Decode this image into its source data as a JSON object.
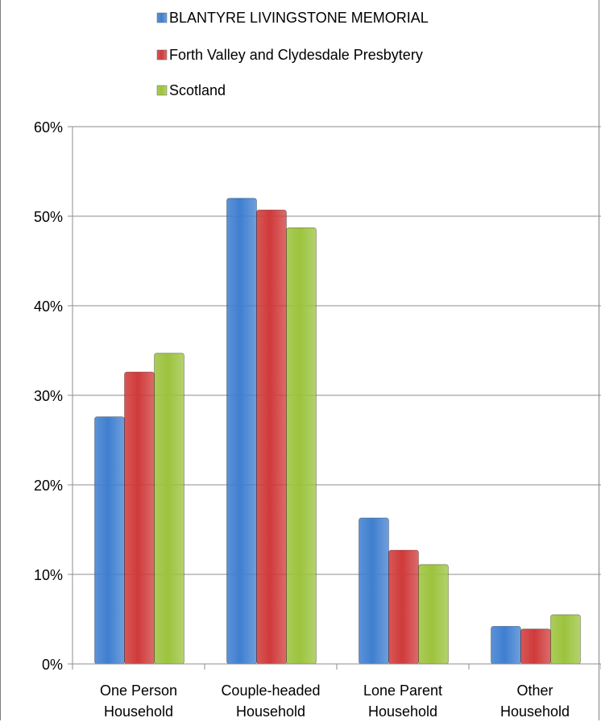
{
  "chart_data": {
    "type": "bar",
    "categories": [
      [
        "One Person",
        "Household"
      ],
      [
        "Couple-headed",
        "Household"
      ],
      [
        "Lone Parent",
        "Household"
      ],
      [
        "Other",
        "Household"
      ]
    ],
    "series": [
      {
        "name": "BLANTYRE LIVINGSTONE MEMORIAL",
        "color": "#3f7fd0",
        "values": [
          27.6,
          52.0,
          16.3,
          4.2
        ]
      },
      {
        "name": "Forth Valley and Clydesdale Presbytery",
        "color": "#d03a3a",
        "values": [
          32.6,
          50.7,
          12.7,
          3.9
        ]
      },
      {
        "name": "Scotland",
        "color": "#9cc33d",
        "values": [
          34.7,
          48.7,
          11.1,
          5.5
        ]
      }
    ],
    "ylim": [
      0,
      60
    ],
    "yticks": [
      "0%",
      "10%",
      "20%",
      "30%",
      "40%",
      "50%",
      "60%"
    ],
    "grid": true,
    "legend": "top"
  }
}
